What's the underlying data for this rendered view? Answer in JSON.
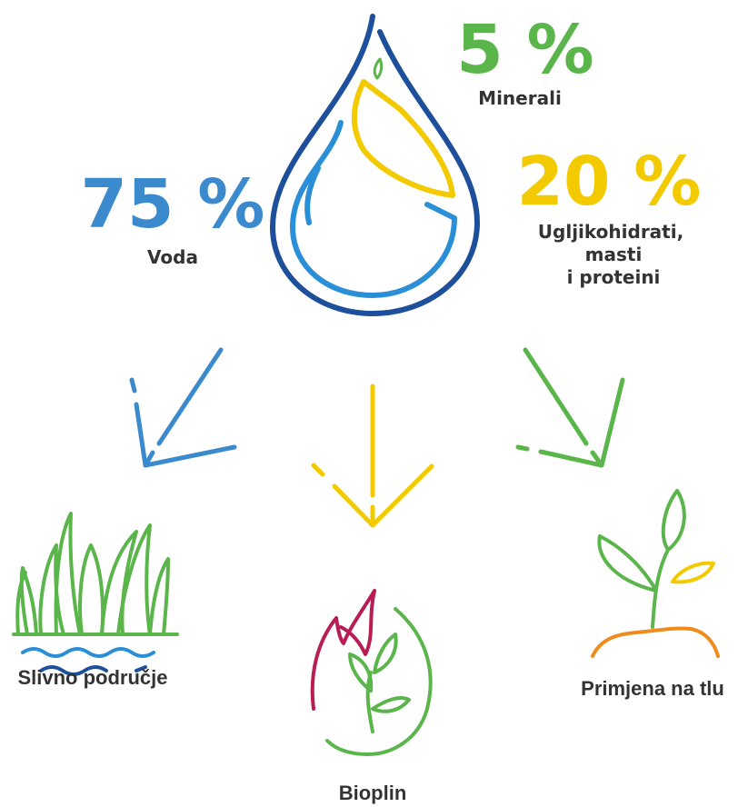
{
  "composition": [
    {
      "percent": "75 %",
      "label": "Voda"
    },
    {
      "percent": "5 %",
      "label": "Minerali"
    },
    {
      "percent": "20 %",
      "label": [
        "Ugljikohidrati,",
        "masti",
        "i proteini"
      ]
    }
  ],
  "outcomes": [
    {
      "label": "Slivno područje"
    },
    {
      "label": "Bioplin"
    },
    {
      "label": "Primjena na tlu"
    }
  ]
}
